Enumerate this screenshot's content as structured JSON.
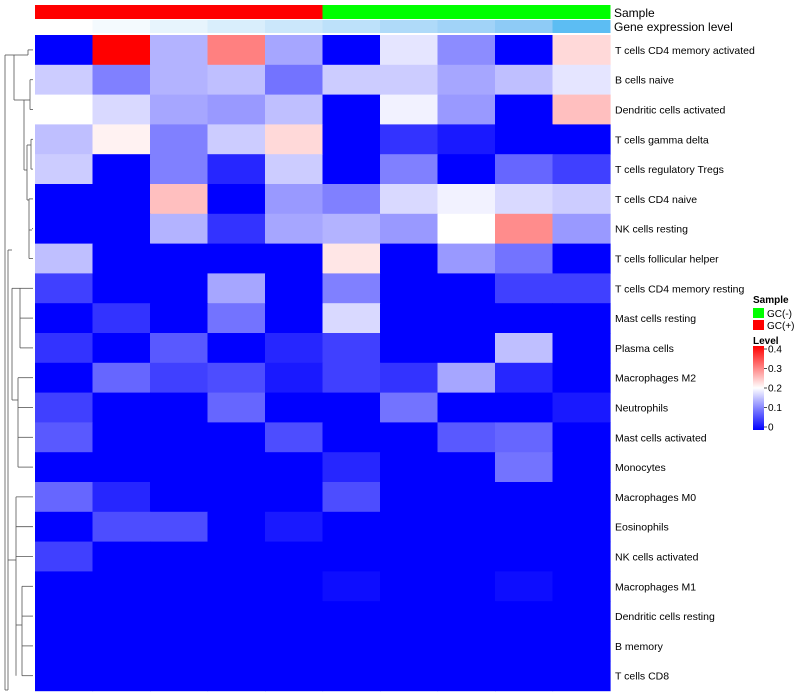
{
  "chart_data": {
    "type": "heatmap",
    "annotation_tracks": [
      {
        "name": "Sample",
        "values": [
          "GC(+)",
          "GC(+)",
          "GC(+)",
          "GC(+)",
          "GC(+)",
          "GC(-)",
          "GC(-)",
          "GC(-)",
          "GC(-)",
          "GC(-)"
        ]
      },
      {
        "name": "Gene expression level",
        "values": [
          1,
          2,
          3,
          4,
          5,
          6,
          7,
          8,
          9,
          10
        ]
      }
    ],
    "rows": [
      "T cells CD4 memory activated",
      "B cells naive",
      "Dendritic cells activated",
      "T cells gamma delta",
      "T cells regulatory  Tregs",
      "T cells CD4 naive",
      "NK cells resting",
      "T cells follicular helper",
      "T cells CD4 memory resting",
      "Mast cells resting",
      "Plasma cells",
      "Macrophages M2",
      "Neutrophils",
      "Mast cells activated",
      "Monocytes",
      "Macrophages M0",
      "Eosinophils",
      "NK cells activated",
      "Macrophages M1",
      "Dendritic cells resting",
      "B memory",
      "T cells CD8"
    ],
    "values": [
      [
        0.0,
        0.4,
        0.14,
        0.3,
        0.13,
        0.0,
        0.18,
        0.11,
        0.0,
        0.23
      ],
      [
        0.16,
        0.1,
        0.14,
        0.15,
        0.09,
        0.16,
        0.16,
        0.13,
        0.15,
        0.18
      ],
      [
        0.2,
        0.17,
        0.13,
        0.12,
        0.15,
        0.0,
        0.19,
        0.12,
        0.0,
        0.25
      ],
      [
        0.15,
        0.21,
        0.1,
        0.16,
        0.23,
        0.0,
        0.04,
        0.02,
        0.0,
        0.0
      ],
      [
        0.16,
        0.0,
        0.1,
        0.03,
        0.16,
        0.0,
        0.1,
        0.0,
        0.08,
        0.05
      ],
      [
        0.0,
        0.0,
        0.25,
        0.0,
        0.12,
        0.1,
        0.17,
        0.19,
        0.17,
        0.16
      ],
      [
        0.0,
        0.0,
        0.14,
        0.04,
        0.13,
        0.14,
        0.12,
        0.2,
        0.29,
        0.12
      ],
      [
        0.15,
        0.0,
        0.0,
        0.0,
        0.0,
        0.22,
        0.0,
        0.12,
        0.09,
        0.0
      ],
      [
        0.05,
        0.0,
        0.0,
        0.13,
        0.0,
        0.1,
        0.0,
        0.0,
        0.05,
        0.05
      ],
      [
        0.0,
        0.04,
        0.0,
        0.09,
        0.0,
        0.17,
        0.0,
        0.0,
        0.0,
        0.0
      ],
      [
        0.04,
        0.0,
        0.07,
        0.0,
        0.03,
        0.05,
        0.0,
        0.0,
        0.15,
        0.0
      ],
      [
        0.0,
        0.08,
        0.05,
        0.06,
        0.02,
        0.05,
        0.04,
        0.13,
        0.03,
        0.0
      ],
      [
        0.05,
        0.0,
        0.0,
        0.08,
        0.0,
        0.0,
        0.09,
        0.0,
        0.0,
        0.02
      ],
      [
        0.07,
        0.0,
        0.0,
        0.0,
        0.06,
        0.0,
        0.0,
        0.07,
        0.08,
        0.0
      ],
      [
        0.0,
        0.0,
        0.0,
        0.0,
        0.0,
        0.03,
        0.0,
        0.0,
        0.09,
        0.0
      ],
      [
        0.08,
        0.03,
        0.0,
        0.0,
        0.0,
        0.06,
        0.0,
        0.0,
        0.0,
        0.0
      ],
      [
        0.0,
        0.06,
        0.06,
        0.0,
        0.02,
        0.0,
        0.0,
        0.0,
        0.0,
        0.0
      ],
      [
        0.05,
        0.0,
        0.0,
        0.0,
        0.0,
        0.0,
        0.0,
        0.0,
        0.0,
        0.0
      ],
      [
        0.0,
        0.0,
        0.0,
        0.0,
        0.0,
        0.01,
        0.0,
        0.0,
        0.01,
        0.0
      ],
      [
        0.0,
        0.0,
        0.0,
        0.0,
        0.0,
        0.0,
        0.0,
        0.0,
        0.0,
        0.0
      ],
      [
        0.0,
        0.0,
        0.0,
        0.0,
        0.0,
        0.0,
        0.0,
        0.0,
        0.0,
        0.0
      ],
      [
        0.0,
        0.0,
        0.0,
        0.0,
        0.0,
        0.0,
        0.0,
        0.0,
        0.0,
        0.0
      ]
    ],
    "color_scale": {
      "min": 0,
      "mid": 0.2,
      "max": 0.4,
      "low": "#0000ff",
      "midColor": "#ffffff",
      "high": "#ff0000"
    },
    "legend": {
      "sample_title": "Sample",
      "sample_items": [
        {
          "label": "GC(-)",
          "color": "#00ff00"
        },
        {
          "label": "GC(+)",
          "color": "#ff0000"
        }
      ],
      "level_title": "Level",
      "level_ticks": [
        "0.4",
        "0.3",
        "0.2",
        "0.1",
        "0"
      ],
      "position": "right"
    },
    "gene_expression_colors": [
      "#ffffff",
      "#f4fafe",
      "#e7f4fd",
      "#d9eefc",
      "#cbe7fb",
      "#bde1fa",
      "#afdaf9",
      "#a1d3f8",
      "#8ecbf6",
      "#5cbdf3"
    ]
  }
}
